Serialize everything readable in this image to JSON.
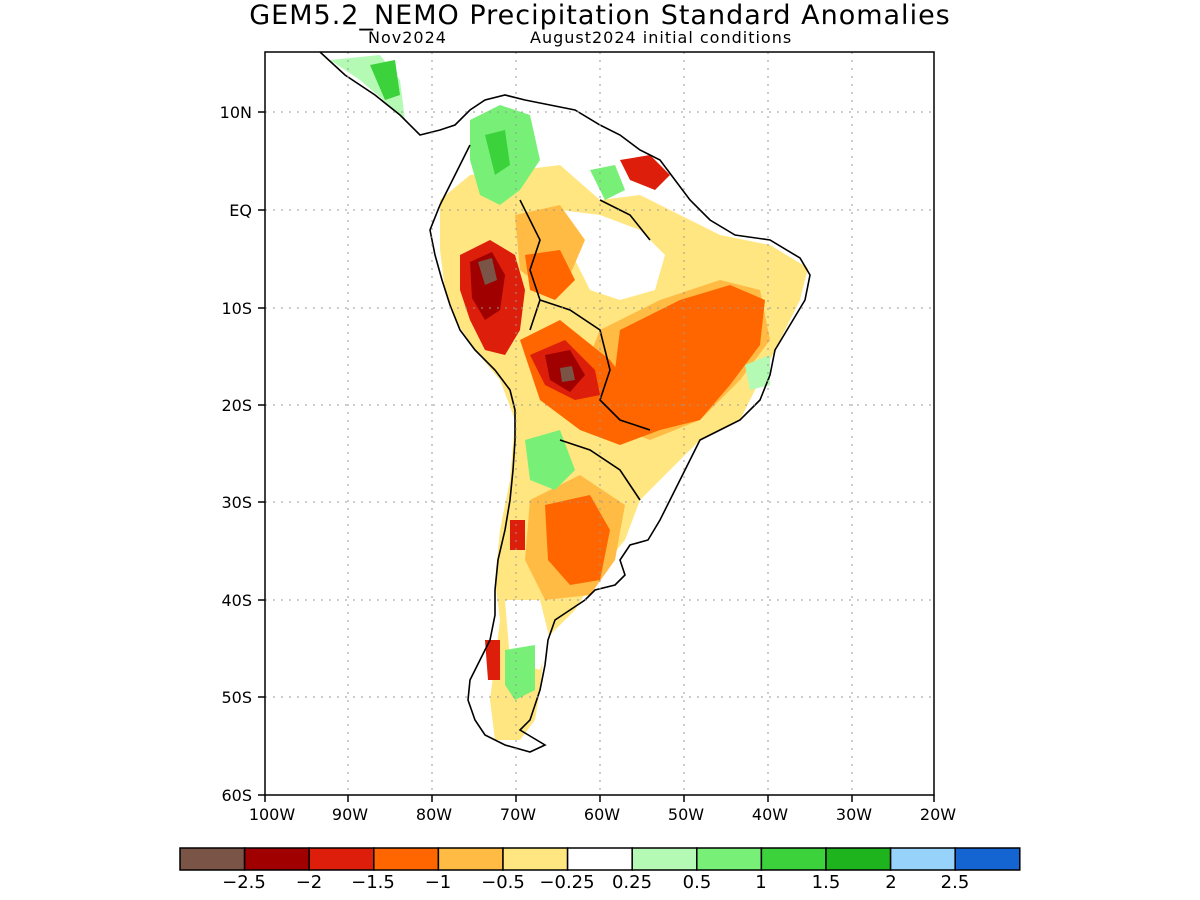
{
  "title": "GEM5.2_NEMO Precipitation Standard Anomalies",
  "subtitle_left": "Nov2024",
  "subtitle_right": "August2024 initial conditions",
  "map": {
    "lon_range": [
      -100,
      -20
    ],
    "lat_range": [
      -60,
      15
    ],
    "lon_ticks": [
      "100W",
      "90W",
      "80W",
      "70W",
      "60W",
      "50W",
      "40W",
      "30W",
      "20W"
    ],
    "lat_ticks": [
      "10N",
      "EQ",
      "10S",
      "20S",
      "30S",
      "40S",
      "50S",
      "60S"
    ],
    "gridlines": "dotted"
  },
  "colorbar": {
    "colors": [
      "#7a5446",
      "#a00000",
      "#dc1e0a",
      "#ff6600",
      "#ffbb44",
      "#ffe680",
      "#ffffff",
      "#b4fab4",
      "#78f078",
      "#3cd23c",
      "#1eb41e",
      "#96d2fa",
      "#1464d2"
    ],
    "labels": [
      "−2.5",
      "−2",
      "−1.5",
      "−1",
      "−0.5",
      "−0.25",
      "0.25",
      "0.5",
      "1",
      "1.5",
      "2",
      "2.5"
    ]
  },
  "anomaly_regions": [
    {
      "level": "<-2.5",
      "color": "#7a5446"
    },
    {
      "level": "-2.5 to -2",
      "color": "#a00000"
    },
    {
      "level": "-2 to -1.5",
      "color": "#dc1e0a"
    },
    {
      "level": "-1.5 to -1",
      "color": "#ff6600"
    },
    {
      "level": "-1 to -0.5",
      "color": "#ffbb44"
    },
    {
      "level": "-0.5 to -0.25",
      "color": "#ffe680"
    },
    {
      "level": "0.25 to 0.5",
      "color": "#b4fab4"
    },
    {
      "level": "0.5 to 1",
      "color": "#78f078"
    },
    {
      "level": "1 to 1.5",
      "color": "#3cd23c"
    }
  ]
}
